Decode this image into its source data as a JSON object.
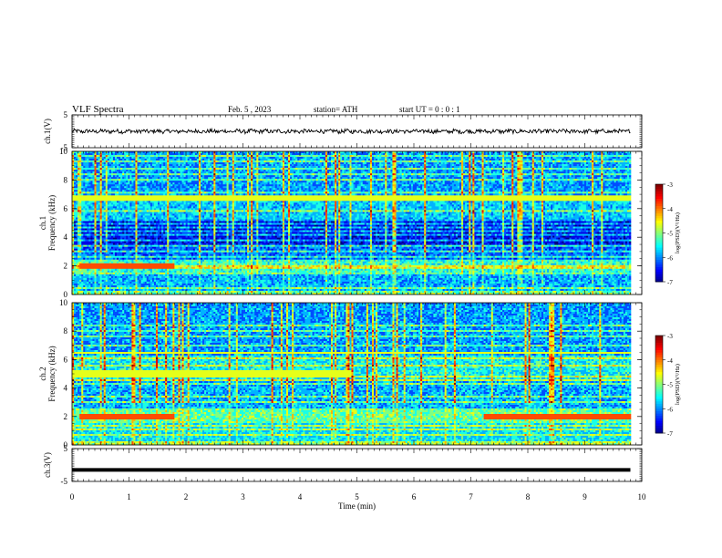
{
  "header": {
    "title": "VLF  Spectra",
    "date": "Feb. 5  , 2023",
    "station": "station= ATH",
    "start": "start  UT  =     0  : 0  : 1"
  },
  "chart_data": [
    {
      "type": "line",
      "name": "ch1-waveform",
      "ylabel": "ch.1(V)",
      "ylim": [
        -5,
        5
      ],
      "yticks": [
        "5",
        "-5"
      ],
      "xlim": [
        0,
        10
      ],
      "baseline": 0,
      "amplitude": 0.6,
      "x_end": 9.8
    },
    {
      "type": "heatmap",
      "name": "ch1-spectrogram",
      "ylabel": "ch.1\nFrequency  (kHz)",
      "ylabel_lines": [
        "ch.1",
        "Frequency  (kHz)"
      ],
      "ylim": [
        0,
        10
      ],
      "yticks": [
        "0",
        "2",
        "4",
        "6",
        "8",
        "10"
      ],
      "xlim": [
        0,
        10
      ],
      "x_end": 9.8,
      "colorbar": {
        "label": "log(PSD)(V²/Hz)",
        "range": [
          -7,
          -3
        ],
        "ticks": [
          "-3",
          "-4",
          "-5",
          "-6",
          "-7"
        ]
      }
    },
    {
      "type": "heatmap",
      "name": "ch2-spectrogram",
      "ylabel": "ch.2\nFrequency  (kHz)",
      "ylabel_lines": [
        "ch.2",
        "Frequency  (kHz)"
      ],
      "ylim": [
        0,
        10
      ],
      "yticks": [
        "0",
        "2",
        "4",
        "6",
        "8",
        "10"
      ],
      "xlim": [
        0,
        10
      ],
      "x_end": 9.8,
      "colorbar": {
        "label": "log(PSD)(V²/Hz)",
        "range": [
          -7,
          -3
        ],
        "ticks": [
          "-3",
          "-4",
          "-5",
          "-6",
          "-7"
        ]
      }
    },
    {
      "type": "line",
      "name": "ch3-waveform",
      "ylabel": "ch.3(V)",
      "ylim": [
        -5,
        5
      ],
      "yticks": [
        "5",
        "-5"
      ],
      "xlim": [
        0,
        10
      ],
      "baseline": -1.5,
      "x_end": 9.8,
      "xlabel": "Time  (min)",
      "xticks": [
        "0",
        "1",
        "2",
        "3",
        "4",
        "5",
        "6",
        "7",
        "8",
        "9",
        "10"
      ]
    }
  ]
}
